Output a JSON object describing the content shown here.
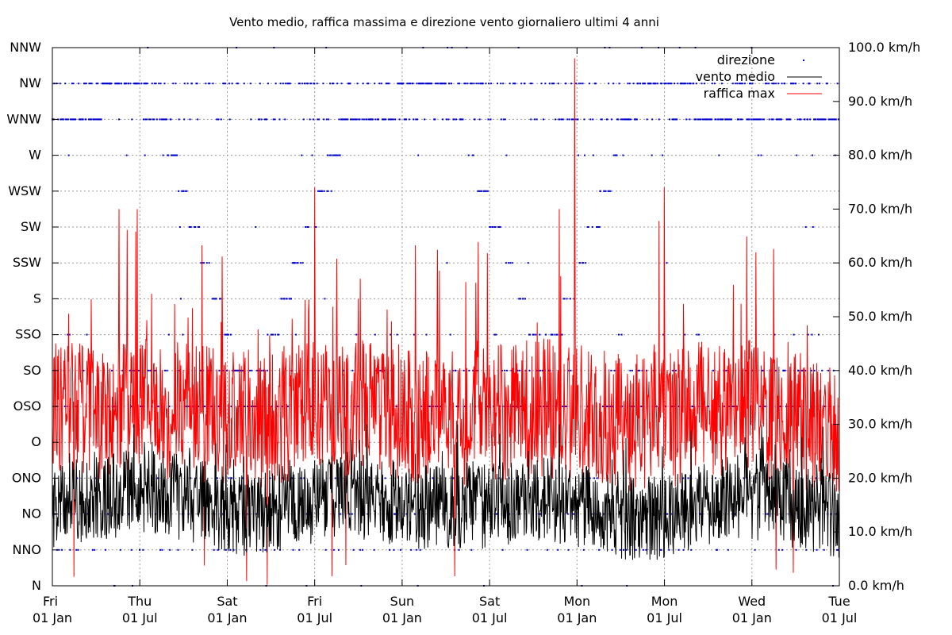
{
  "chart_data": {
    "type": "line",
    "title": "Vento medio, raffica massima e direzione vento giornaliero ultimi 4 anni",
    "x_tick_labels": [
      {
        "weekday": "Fri",
        "date": "01 Jan"
      },
      {
        "weekday": "Thu",
        "date": "01 Jul"
      },
      {
        "weekday": "Sat",
        "date": "01 Jan"
      },
      {
        "weekday": "Fri",
        "date": "01 Jul"
      },
      {
        "weekday": "Sun",
        "date": "01 Jan"
      },
      {
        "weekday": "Sat",
        "date": "01 Jul"
      },
      {
        "weekday": "Mon",
        "date": "01 Jan"
      },
      {
        "weekday": "Mon",
        "date": "01 Jul"
      },
      {
        "weekday": "Wed",
        "date": "01 Jan"
      },
      {
        "weekday": "Tue",
        "date": "01 Jul"
      }
    ],
    "y_left_ticks": [
      "N",
      "NNO",
      "NO",
      "ONO",
      "O",
      "OSO",
      "SO",
      "SSO",
      "S",
      "SSW",
      "SW",
      "WSW",
      "W",
      "WNW",
      "NW",
      "NNW"
    ],
    "y_right_ticks": [
      "0.0 km/h",
      "10.0 km/h",
      "20.0 km/h",
      "30.0 km/h",
      "40.0 km/h",
      "50.0 km/h",
      "60.0 km/h",
      "70.0 km/h",
      "80.0 km/h",
      "90.0 km/h",
      "100.0 km/h"
    ],
    "y_right_range": [
      0,
      100
    ],
    "grid": true,
    "legend_position": "top-right",
    "series": [
      {
        "name": "direzione",
        "style": "points",
        "color": "#0000cc",
        "note": "daily direction, sector index 0 (N) to 15 (NNW), concentrated at NW / WNW / OSO / SO / NNO",
        "approx_values_per_half_year": [
          13,
          14,
          5,
          13,
          14,
          6,
          14,
          13,
          13
        ]
      },
      {
        "name": "vento medio",
        "style": "line",
        "color": "#000000",
        "approx_values_per_half_year": [
          15,
          18,
          13,
          17,
          14,
          16,
          12,
          17,
          13
        ],
        "range": [
          1,
          30
        ]
      },
      {
        "name": "raffica max",
        "style": "line",
        "color": "#ff0000",
        "approx_values_per_half_year": [
          32,
          33,
          31,
          33,
          31,
          33,
          30,
          34,
          28
        ],
        "range": [
          0,
          98
        ],
        "peaks": [
          {
            "x_label": "Mon 01 Jan",
            "value": 98
          },
          {
            "x_label": "Mon 01 Jul",
            "value": 74
          },
          {
            "x_label": "Fri 01 Jul",
            "value": 74
          }
        ]
      }
    ]
  }
}
